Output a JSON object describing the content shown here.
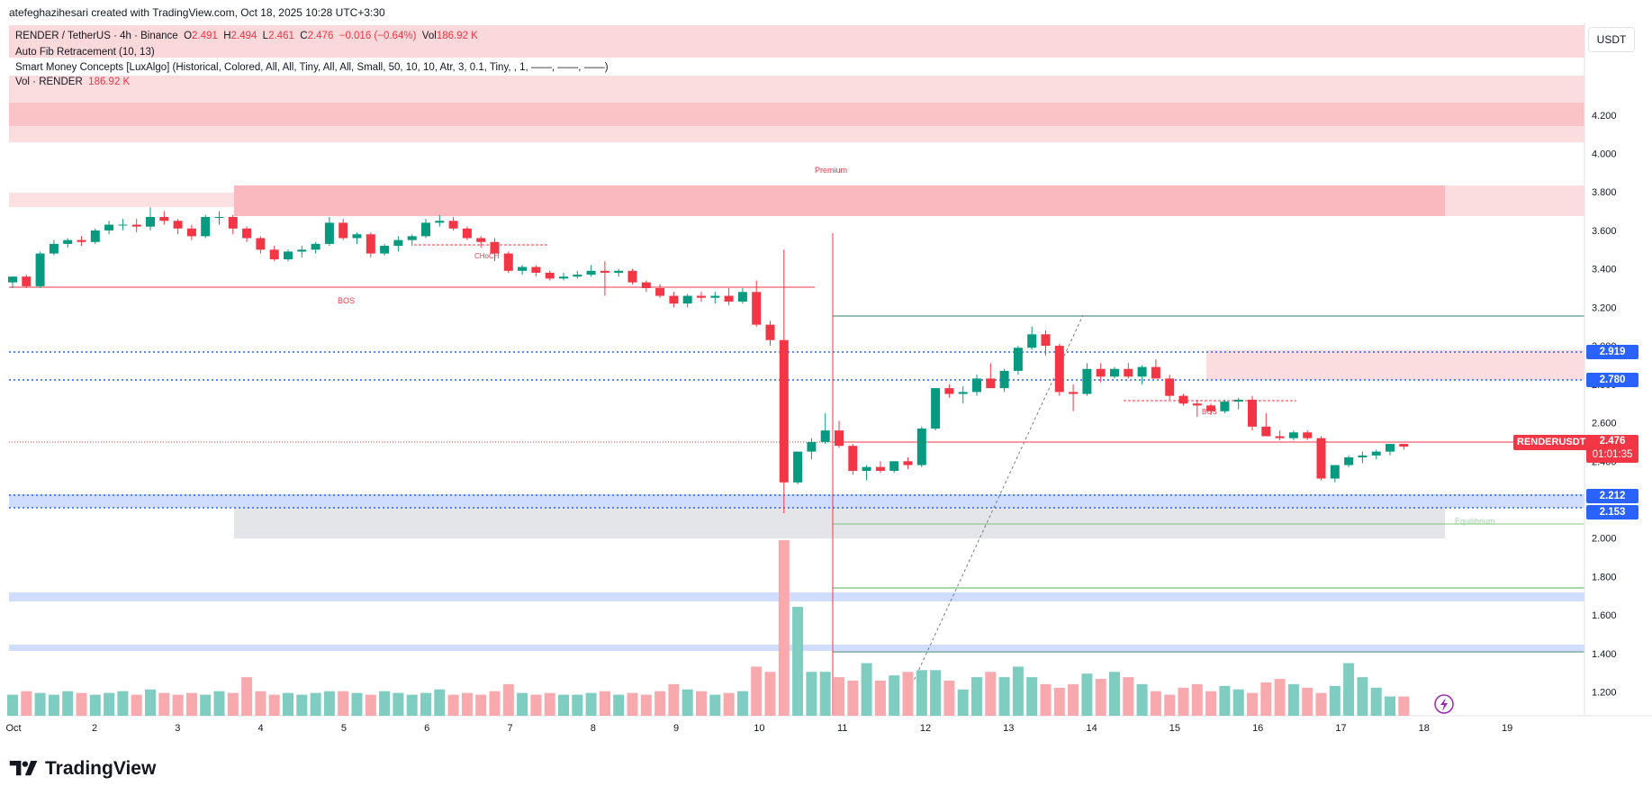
{
  "header": {
    "attribution": "atefeghazihesari created with TradingView.com, Oct 18, 2025 10:28 UTC+3:30"
  },
  "legend": {
    "symbol": "RENDER / TetherUS · 4h · Binance",
    "o_label": "O",
    "o": "2.491",
    "h_label": "H",
    "h": "2.494",
    "l_label": "L",
    "l": "2.461",
    "c_label": "C",
    "c": "2.476",
    "change": "−0.016 (−0.64%)",
    "vol_label": "Vol",
    "vol": "186.92 K",
    "indicator1": "Auto Fib Retracement (10, 13)",
    "indicator2": "Smart Money Concepts [LuxAlgo] (Historical, Colored, All, All, Tiny, All, All, Small, 50, 10, 10, Atr, 3, 0.1, Tiny, , 1, ——, ——, ——)",
    "vol_line": "Vol · RENDER",
    "vol_value": "186.92 K"
  },
  "axis": {
    "currency": "USDT",
    "price_ticks": [
      "4.200",
      "4.000",
      "3.800",
      "3.600",
      "3.400",
      "3.200",
      "3.000",
      "2.800",
      "2.600",
      "2.400",
      "2.200",
      "2.000",
      "1.800",
      "1.600",
      "1.400",
      "1.200"
    ],
    "date_ticks": [
      "Oct",
      "2",
      "3",
      "4",
      "5",
      "6",
      "7",
      "8",
      "9",
      "10",
      "11",
      "12",
      "13",
      "14",
      "15",
      "16",
      "17",
      "18",
      "19"
    ]
  },
  "badges": {
    "fib_2919": "2.919",
    "fib_2780": "2.780",
    "last_price": "2.476",
    "countdown": "01:01:35",
    "fib_2212": "2.212",
    "fib_2153": "2.153",
    "symbol_tag": "RENDERUSDT"
  },
  "annotations": {
    "premium": "Premium",
    "choch": "CHoCH",
    "bos1": "BOS",
    "bos2": "BOS",
    "equilibrium": "Equilibrium"
  },
  "colors": {
    "up": "#089981",
    "down": "#f23645",
    "vol_up": "#7fccc0",
    "vol_down": "#f7a9ae",
    "fib_blue": "#2962ff"
  },
  "footer": {
    "brand": "TradingView"
  },
  "chart_data": {
    "type": "candlestick",
    "timeframe": "4h",
    "y_range": [
      1.1,
      4.33
    ],
    "candles": [
      [
        3.33,
        3.36,
        3.3,
        3.36
      ],
      [
        3.36,
        3.37,
        3.3,
        3.31
      ],
      [
        3.31,
        3.49,
        3.3,
        3.48
      ],
      [
        3.48,
        3.55,
        3.47,
        3.53
      ],
      [
        3.53,
        3.56,
        3.51,
        3.55
      ],
      [
        3.55,
        3.57,
        3.52,
        3.54
      ],
      [
        3.54,
        3.61,
        3.53,
        3.6
      ],
      [
        3.6,
        3.65,
        3.58,
        3.63
      ],
      [
        3.63,
        3.66,
        3.6,
        3.63
      ],
      [
        3.63,
        3.66,
        3.59,
        3.62
      ],
      [
        3.62,
        3.72,
        3.6,
        3.67
      ],
      [
        3.67,
        3.7,
        3.63,
        3.65
      ],
      [
        3.65,
        3.66,
        3.58,
        3.61
      ],
      [
        3.61,
        3.63,
        3.55,
        3.57
      ],
      [
        3.57,
        3.68,
        3.56,
        3.67
      ],
      [
        3.67,
        3.7,
        3.63,
        3.67
      ],
      [
        3.67,
        3.68,
        3.58,
        3.61
      ],
      [
        3.61,
        3.62,
        3.54,
        3.56
      ],
      [
        3.56,
        3.57,
        3.48,
        3.5
      ],
      [
        3.5,
        3.52,
        3.44,
        3.45
      ],
      [
        3.45,
        3.5,
        3.44,
        3.49
      ],
      [
        3.49,
        3.52,
        3.46,
        3.5
      ],
      [
        3.5,
        3.54,
        3.48,
        3.53
      ],
      [
        3.53,
        3.67,
        3.52,
        3.64
      ],
      [
        3.64,
        3.66,
        3.55,
        3.56
      ],
      [
        3.56,
        3.59,
        3.53,
        3.58
      ],
      [
        3.58,
        3.59,
        3.46,
        3.48
      ],
      [
        3.48,
        3.53,
        3.47,
        3.52
      ],
      [
        3.52,
        3.57,
        3.49,
        3.55
      ],
      [
        3.55,
        3.58,
        3.52,
        3.57
      ],
      [
        3.57,
        3.66,
        3.56,
        3.64
      ],
      [
        3.64,
        3.68,
        3.62,
        3.65
      ],
      [
        3.65,
        3.67,
        3.6,
        3.61
      ],
      [
        3.61,
        3.62,
        3.55,
        3.56
      ],
      [
        3.56,
        3.57,
        3.51,
        3.54
      ],
      [
        3.54,
        3.56,
        3.44,
        3.48
      ],
      [
        3.48,
        3.49,
        3.38,
        3.39
      ],
      [
        3.39,
        3.42,
        3.37,
        3.41
      ],
      [
        3.41,
        3.42,
        3.36,
        3.38
      ],
      [
        3.38,
        3.39,
        3.34,
        3.35
      ],
      [
        3.35,
        3.38,
        3.34,
        3.36
      ],
      [
        3.36,
        3.39,
        3.35,
        3.37
      ],
      [
        3.37,
        3.42,
        3.36,
        3.39
      ],
      [
        3.39,
        3.44,
        3.26,
        3.38
      ],
      [
        3.38,
        3.4,
        3.36,
        3.39
      ],
      [
        3.39,
        3.4,
        3.32,
        3.33
      ],
      [
        3.33,
        3.34,
        3.28,
        3.3
      ],
      [
        3.3,
        3.32,
        3.25,
        3.26
      ],
      [
        3.26,
        3.28,
        3.2,
        3.22
      ],
      [
        3.22,
        3.27,
        3.2,
        3.26
      ],
      [
        3.26,
        3.28,
        3.23,
        3.25
      ],
      [
        3.25,
        3.28,
        3.22,
        3.26
      ],
      [
        3.26,
        3.3,
        3.21,
        3.23
      ],
      [
        3.23,
        3.3,
        3.22,
        3.28
      ],
      [
        3.28,
        3.34,
        3.1,
        3.11
      ],
      [
        3.11,
        3.13,
        3.0,
        3.03
      ],
      [
        3.03,
        3.5,
        2.13,
        2.29
      ],
      [
        2.29,
        2.45,
        2.28,
        2.45
      ],
      [
        2.45,
        2.52,
        2.41,
        2.5
      ],
      [
        2.5,
        2.65,
        2.49,
        2.56
      ],
      [
        2.56,
        2.61,
        2.47,
        2.48
      ],
      [
        2.48,
        2.49,
        2.33,
        2.35
      ],
      [
        2.35,
        2.38,
        2.3,
        2.37
      ],
      [
        2.37,
        2.4,
        2.34,
        2.35
      ],
      [
        2.35,
        2.4,
        2.34,
        2.4
      ],
      [
        2.4,
        2.42,
        2.36,
        2.38
      ],
      [
        2.38,
        2.58,
        2.37,
        2.57
      ],
      [
        2.57,
        2.78,
        2.56,
        2.78
      ],
      [
        2.78,
        2.8,
        2.73,
        2.75
      ],
      [
        2.75,
        2.79,
        2.7,
        2.76
      ],
      [
        2.76,
        2.85,
        2.74,
        2.83
      ],
      [
        2.83,
        2.91,
        2.8,
        2.78
      ],
      [
        2.78,
        2.88,
        2.76,
        2.87
      ],
      [
        2.87,
        3.0,
        2.85,
        2.99
      ],
      [
        2.99,
        3.1,
        2.98,
        3.06
      ],
      [
        3.06,
        3.08,
        2.95,
        3.0
      ],
      [
        3.0,
        3.01,
        2.74,
        2.76
      ],
      [
        2.76,
        2.8,
        2.66,
        2.75
      ],
      [
        2.75,
        2.91,
        2.74,
        2.88
      ],
      [
        2.88,
        2.91,
        2.81,
        2.84
      ],
      [
        2.84,
        2.89,
        2.83,
        2.88
      ],
      [
        2.88,
        2.91,
        2.83,
        2.84
      ],
      [
        2.84,
        2.9,
        2.8,
        2.89
      ],
      [
        2.89,
        2.93,
        2.83,
        2.83
      ],
      [
        2.83,
        2.85,
        2.72,
        2.74
      ],
      [
        2.74,
        2.75,
        2.69,
        2.7
      ],
      [
        2.7,
        2.72,
        2.63,
        2.69
      ],
      [
        2.69,
        2.7,
        2.64,
        2.66
      ],
      [
        2.66,
        2.72,
        2.65,
        2.71
      ],
      [
        2.71,
        2.73,
        2.67,
        2.72
      ],
      [
        2.72,
        2.74,
        2.56,
        2.58
      ],
      [
        2.58,
        2.65,
        2.53,
        2.53
      ],
      [
        2.53,
        2.56,
        2.51,
        2.52
      ],
      [
        2.52,
        2.56,
        2.51,
        2.55
      ],
      [
        2.55,
        2.56,
        2.51,
        2.52
      ],
      [
        2.52,
        2.53,
        2.3,
        2.31
      ],
      [
        2.31,
        2.38,
        2.29,
        2.38
      ],
      [
        2.38,
        2.43,
        2.37,
        2.42
      ],
      [
        2.42,
        2.45,
        2.39,
        2.43
      ],
      [
        2.43,
        2.46,
        2.41,
        2.45
      ],
      [
        2.45,
        2.49,
        2.43,
        2.49
      ],
      [
        2.49,
        2.49,
        2.46,
        2.476
      ]
    ],
    "volume": [
      12,
      14,
      13,
      12,
      14,
      13,
      12,
      13,
      14,
      12,
      15,
      13,
      12,
      13,
      12,
      14,
      13,
      22,
      14,
      12,
      13,
      12,
      13,
      14,
      14,
      13,
      12,
      14,
      13,
      12,
      13,
      15,
      12,
      13,
      12,
      14,
      18,
      13,
      12,
      13,
      12,
      12,
      13,
      14,
      12,
      13,
      12,
      14,
      18,
      15,
      14,
      12,
      13,
      14,
      28,
      25,
      100,
      62,
      25,
      25,
      22,
      20,
      30,
      20,
      23,
      25,
      26,
      26,
      20,
      15,
      22,
      25,
      22,
      28,
      22,
      18,
      16,
      18,
      24,
      21,
      25,
      22,
      18,
      14,
      12,
      16,
      18,
      14,
      17,
      15,
      13,
      19,
      21,
      18,
      16,
      13,
      17,
      30,
      22,
      16,
      11,
      11
    ],
    "fib_levels": [
      2.919,
      2.78,
      2.212,
      2.153
    ]
  }
}
